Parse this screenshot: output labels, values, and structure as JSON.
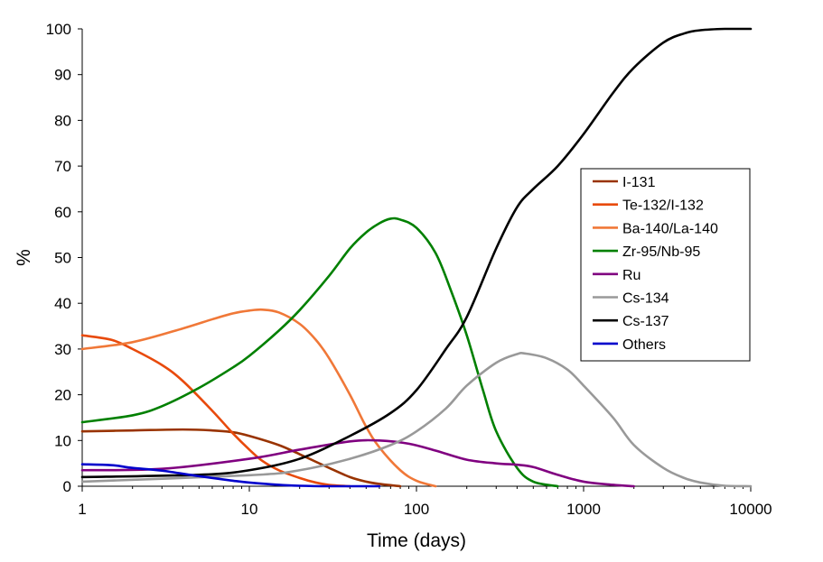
{
  "chart_data": {
    "type": "line",
    "xlabel": "Time (days)",
    "ylabel": "%",
    "xscale": "log",
    "xlim": [
      1,
      10000
    ],
    "ylim": [
      0,
      100
    ],
    "x_ticks": [
      "1",
      "10",
      "100",
      "1000",
      "10000"
    ],
    "y_ticks": [
      "0",
      "10",
      "20",
      "30",
      "40",
      "50",
      "60",
      "70",
      "80",
      "90",
      "100"
    ],
    "grid": false,
    "legend_position": "right",
    "series": [
      {
        "name": "I-131",
        "color": "#993300",
        "points": [
          [
            1,
            12
          ],
          [
            2,
            12.2
          ],
          [
            4,
            12.4
          ],
          [
            6,
            12.2
          ],
          [
            8,
            11.8
          ],
          [
            10,
            11
          ],
          [
            15,
            9
          ],
          [
            20,
            7
          ],
          [
            30,
            4
          ],
          [
            40,
            2
          ],
          [
            50,
            1
          ],
          [
            60,
            0.5
          ],
          [
            80,
            0
          ]
        ]
      },
      {
        "name": "Te-132/I-132",
        "color": "#e84a0c",
        "points": [
          [
            1,
            33
          ],
          [
            1.5,
            32
          ],
          [
            2,
            30
          ],
          [
            3,
            26.5
          ],
          [
            4,
            23
          ],
          [
            6,
            16.5
          ],
          [
            8,
            11.5
          ],
          [
            10,
            8
          ],
          [
            12,
            5.5
          ],
          [
            15,
            3.5
          ],
          [
            20,
            1.8
          ],
          [
            25,
            0.8
          ],
          [
            30,
            0.3
          ],
          [
            40,
            0
          ]
        ]
      },
      {
        "name": "Ba-140/La-140",
        "color": "#f07838",
        "points": [
          [
            1,
            30
          ],
          [
            2,
            31.5
          ],
          [
            4,
            34.5
          ],
          [
            6,
            36.5
          ],
          [
            8,
            37.8
          ],
          [
            10,
            38.4
          ],
          [
            12,
            38.6
          ],
          [
            15,
            38
          ],
          [
            20,
            35.5
          ],
          [
            25,
            32
          ],
          [
            30,
            28
          ],
          [
            40,
            20
          ],
          [
            50,
            13
          ],
          [
            60,
            8.5
          ],
          [
            80,
            3.5
          ],
          [
            100,
            1.2
          ],
          [
            130,
            0
          ]
        ]
      },
      {
        "name": "Zr-95/Nb-95",
        "color": "#008000",
        "points": [
          [
            1,
            14
          ],
          [
            2,
            15.5
          ],
          [
            3,
            17.5
          ],
          [
            5,
            21.5
          ],
          [
            8,
            26
          ],
          [
            10,
            28.5
          ],
          [
            15,
            34
          ],
          [
            20,
            38.5
          ],
          [
            30,
            46
          ],
          [
            40,
            52
          ],
          [
            50,
            55.5
          ],
          [
            60,
            57.5
          ],
          [
            70,
            58.5
          ],
          [
            80,
            58.3
          ],
          [
            100,
            56.5
          ],
          [
            130,
            51
          ],
          [
            160,
            43
          ],
          [
            200,
            33
          ],
          [
            250,
            21
          ],
          [
            300,
            12
          ],
          [
            400,
            4
          ],
          [
            500,
            1
          ],
          [
            700,
            0
          ]
        ]
      },
      {
        "name": "Ru",
        "color": "#800080",
        "points": [
          [
            1,
            3.5
          ],
          [
            3,
            3.8
          ],
          [
            10,
            6
          ],
          [
            20,
            8
          ],
          [
            40,
            9.8
          ],
          [
            60,
            10
          ],
          [
            90,
            9.3
          ],
          [
            130,
            7.8
          ],
          [
            200,
            5.8
          ],
          [
            300,
            5
          ],
          [
            400,
            4.7
          ],
          [
            500,
            4.2
          ],
          [
            700,
            2.5
          ],
          [
            1000,
            1
          ],
          [
            1500,
            0.3
          ],
          [
            2000,
            0
          ]
        ]
      },
      {
        "name": "Cs-134",
        "color": "#999999",
        "points": [
          [
            1,
            1
          ],
          [
            10,
            2.4
          ],
          [
            20,
            3.5
          ],
          [
            40,
            6
          ],
          [
            70,
            9
          ],
          [
            100,
            12
          ],
          [
            150,
            17
          ],
          [
            200,
            22
          ],
          [
            300,
            27
          ],
          [
            400,
            28.9
          ],
          [
            450,
            29
          ],
          [
            600,
            28
          ],
          [
            800,
            25.5
          ],
          [
            1000,
            22
          ],
          [
            1500,
            15
          ],
          [
            2000,
            9
          ],
          [
            3000,
            4
          ],
          [
            4000,
            1.8
          ],
          [
            5000,
            0.8
          ],
          [
            7000,
            0.1
          ],
          [
            10000,
            0
          ]
        ]
      },
      {
        "name": "Cs-137",
        "color": "#000000",
        "points": [
          [
            1,
            2
          ],
          [
            5,
            2.5
          ],
          [
            10,
            3.5
          ],
          [
            20,
            6
          ],
          [
            40,
            11
          ],
          [
            70,
            16
          ],
          [
            100,
            21
          ],
          [
            150,
            30
          ],
          [
            200,
            37
          ],
          [
            300,
            52
          ],
          [
            400,
            61
          ],
          [
            500,
            65
          ],
          [
            700,
            70
          ],
          [
            1000,
            77
          ],
          [
            1500,
            86
          ],
          [
            2000,
            91.5
          ],
          [
            3000,
            97
          ],
          [
            4000,
            99
          ],
          [
            5000,
            99.7
          ],
          [
            7000,
            100
          ],
          [
            10000,
            100
          ]
        ]
      },
      {
        "name": "Others",
        "color": "#0000cc",
        "points": [
          [
            1,
            4.8
          ],
          [
            1.5,
            4.6
          ],
          [
            2,
            4
          ],
          [
            3,
            3.4
          ],
          [
            5,
            2.2
          ],
          [
            8,
            1.2
          ],
          [
            10,
            0.8
          ],
          [
            15,
            0.3
          ],
          [
            20,
            0.1
          ],
          [
            30,
            0
          ],
          [
            60,
            0
          ]
        ]
      }
    ]
  }
}
